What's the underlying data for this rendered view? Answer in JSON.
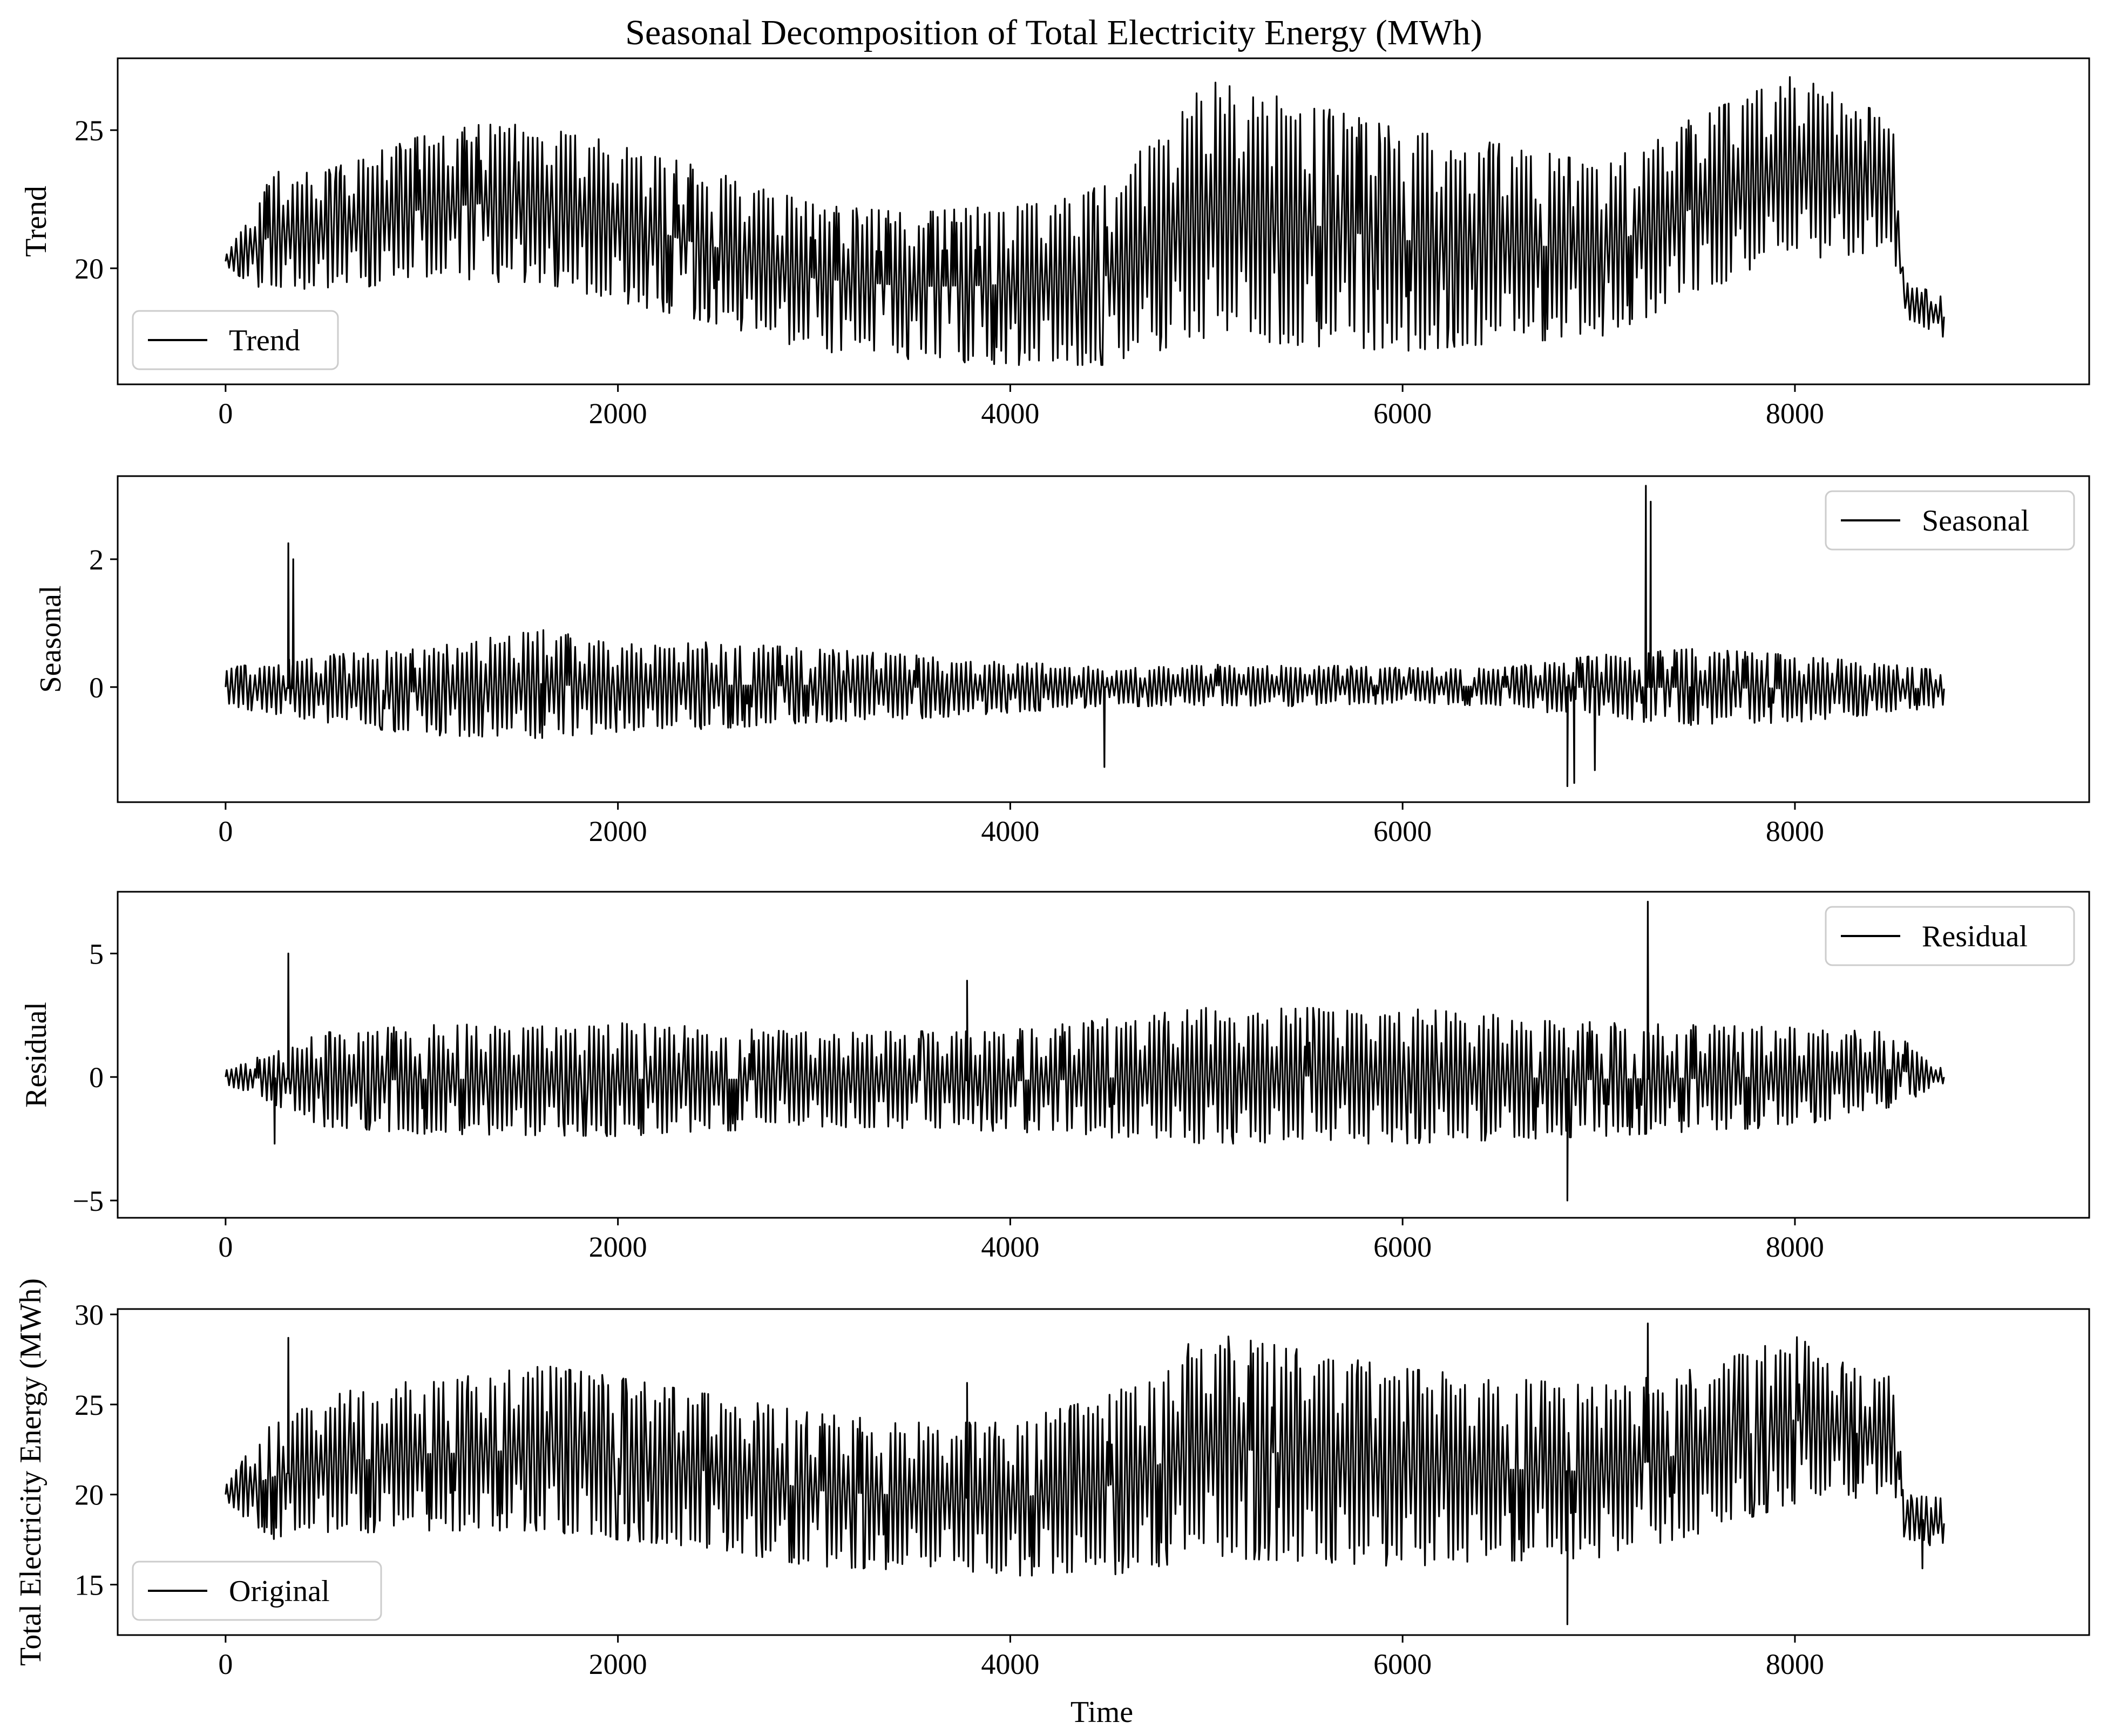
{
  "figure_title": "Seasonal Decomposition of Total Electricity Energy (MWh)",
  "chart_data": [
    {
      "type": "line",
      "panel": "trend",
      "ylabel": "Trend",
      "xlim": [
        -550,
        9500
      ],
      "ylim": [
        15.8,
        27.6
      ],
      "yticks": [
        20,
        25
      ],
      "xticks": [
        0,
        2000,
        4000,
        6000,
        8000
      ],
      "legend": {
        "label": "Trend",
        "loc": "lower-left"
      },
      "series": [
        {
          "name": "Trend",
          "color": "#000000",
          "envelope": {
            "x": [
              0,
              250,
              500,
              1000,
              1300,
              1600,
              2000,
              2500,
              3000,
              3500,
              4000,
              4500,
              5000,
              5500,
              6000,
              6500,
              7000,
              7500,
              8000,
              8300,
              8500,
              8560,
              8760
            ],
            "high": [
              20.5,
              23.5,
              23.5,
              24.8,
              25.2,
              25.2,
              24.5,
              23.5,
              22.3,
              22.0,
              22.3,
              23.0,
              26.8,
              26.0,
              25.0,
              24.5,
              23.8,
              25.5,
              27.0,
              26.0,
              25.5,
              19.5,
              19.0
            ],
            "low": [
              20.0,
              19.0,
              19.2,
              19.5,
              19.5,
              19.5,
              18.8,
              18.0,
              17.0,
              16.7,
              16.5,
              16.5,
              17.5,
              17.2,
              17.0,
              17.3,
              17.5,
              19.0,
              20.3,
              20.5,
              20.5,
              18.2,
              17.5
            ]
          },
          "cycle_period": 168
        }
      ]
    },
    {
      "type": "line",
      "panel": "seasonal",
      "ylabel": "Seasonal",
      "xlim": [
        -550,
        9500
      ],
      "ylim": [
        -1.8,
        3.3
      ],
      "yticks": [
        0,
        2
      ],
      "xticks": [
        0,
        2000,
        4000,
        6000,
        8000
      ],
      "legend": {
        "label": "Seasonal",
        "loc": "upper-right"
      },
      "series": [
        {
          "name": "Seasonal",
          "color": "#000000",
          "envelope": {
            "x": [
              0,
              500,
              1000,
              1600,
              2000,
              2500,
              3000,
              3500,
              4000,
              4500,
              5000,
              5500,
              6000,
              6500,
              7000,
              7500,
              8000,
              8500,
              8760
            ],
            "high": [
              0.3,
              0.5,
              0.6,
              0.9,
              0.7,
              0.7,
              0.6,
              0.5,
              0.4,
              0.3,
              0.35,
              0.35,
              0.3,
              0.3,
              0.5,
              0.6,
              0.5,
              0.35,
              0.25
            ],
            "low": [
              -0.3,
              -0.55,
              -0.75,
              -0.8,
              -0.7,
              -0.65,
              -0.55,
              -0.5,
              -0.4,
              -0.3,
              -0.3,
              -0.3,
              -0.25,
              -0.3,
              -0.5,
              -0.6,
              -0.55,
              -0.4,
              -0.3
            ]
          },
          "cycle_period": 168,
          "spikes": [
            {
              "x": 320,
              "y": 2.25
            },
            {
              "x": 345,
              "y": 2.0
            },
            {
              "x": 7240,
              "y": 3.15
            },
            {
              "x": 7265,
              "y": 2.9
            },
            {
              "x": 4480,
              "y": -1.25
            },
            {
              "x": 6840,
              "y": -1.55
            },
            {
              "x": 6875,
              "y": -1.5
            },
            {
              "x": 6980,
              "y": -1.3
            }
          ]
        }
      ]
    },
    {
      "type": "line",
      "panel": "residual",
      "ylabel": "Residual",
      "xlim": [
        -550,
        9500
      ],
      "ylim": [
        -5.7,
        7.5
      ],
      "yticks": [
        -5,
        0,
        5
      ],
      "xticks": [
        0,
        2000,
        4000,
        6000,
        8000
      ],
      "legend": {
        "label": "Residual",
        "loc": "upper-right"
      },
      "series": [
        {
          "name": "Residual",
          "color": "#000000",
          "envelope": {
            "x": [
              0,
              500,
              1000,
              2000,
              3000,
              4000,
              5000,
              6000,
              7000,
              8000,
              8500,
              8760
            ],
            "high": [
              0.3,
              1.8,
              2.1,
              2.2,
              1.8,
              1.9,
              2.8,
              2.8,
              2.2,
              2.0,
              1.8,
              0.3
            ],
            "low": [
              -0.3,
              -2.0,
              -2.3,
              -2.4,
              -2.0,
              -2.2,
              -2.7,
              -2.7,
              -2.4,
              -2.0,
              -1.2,
              -0.3
            ]
          },
          "cycle_period": 168,
          "spikes": [
            {
              "x": 320,
              "y": 5.0
            },
            {
              "x": 3780,
              "y": 3.9
            },
            {
              "x": 7250,
              "y": 7.1
            },
            {
              "x": 6840,
              "y": -5.0
            },
            {
              "x": 250,
              "y": -2.7
            }
          ]
        }
      ]
    },
    {
      "type": "line",
      "panel": "original",
      "ylabel": "Total Electricity Energy (MWh)",
      "xlabel": "Time",
      "xlim": [
        -550,
        9500
      ],
      "ylim": [
        12.2,
        30.3
      ],
      "yticks": [
        15,
        20,
        25,
        30
      ],
      "xticks": [
        0,
        2000,
        4000,
        6000,
        8000
      ],
      "legend": {
        "label": "Original",
        "loc": "lower-left"
      },
      "series": [
        {
          "name": "Original",
          "color": "#000000",
          "envelope": {
            "x": [
              0,
              250,
              500,
              1000,
              1300,
              1600,
              2000,
              2500,
              3000,
              3500,
              4000,
              4500,
              5000,
              5500,
              6000,
              6500,
              7000,
              7500,
              8000,
              8300,
              8500,
              8560,
              8760
            ],
            "high": [
              20.5,
              24.5,
              25.5,
              26.5,
              26.6,
              27.2,
              26.5,
              25.5,
              24.5,
              24.0,
              24.0,
              25.5,
              29.0,
              28.0,
              27.0,
              26.5,
              26.0,
              27.0,
              28.8,
              27.0,
              26.5,
              20.0,
              19.8
            ],
            "low": [
              19.5,
              17.5,
              17.8,
              18.0,
              18.0,
              18.0,
              17.5,
              17.0,
              16.0,
              15.8,
              15.5,
              15.5,
              16.5,
              16.3,
              16.0,
              16.3,
              16.5,
              17.8,
              19.5,
              19.8,
              20.0,
              17.5,
              17.0
            ]
          },
          "cycle_period": 168,
          "spikes": [
            {
              "x": 320,
              "y": 28.7
            },
            {
              "x": 3780,
              "y": 26.2
            },
            {
              "x": 7250,
              "y": 29.5
            },
            {
              "x": 6840,
              "y": 12.8
            },
            {
              "x": 8650,
              "y": 15.9
            }
          ]
        }
      ]
    }
  ]
}
